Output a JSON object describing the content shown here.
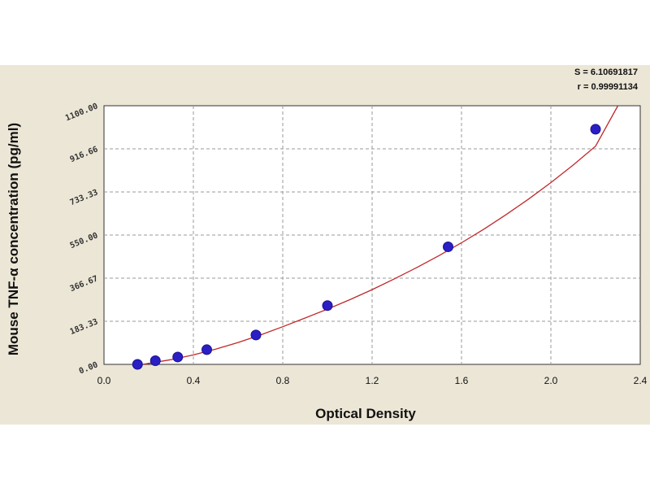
{
  "chart_data": {
    "type": "scatter",
    "xlabel": "Optical Density",
    "ylabel": "Mouse TNF-α concentration (pg/ml)",
    "xlim": [
      0.0,
      2.4
    ],
    "ylim": [
      0.0,
      1100.0
    ],
    "x_ticks": [
      "0.0",
      "0.4",
      "0.8",
      "1.2",
      "1.6",
      "2.0",
      "2.4"
    ],
    "y_ticks": [
      "0.00",
      "183.33",
      "366.67",
      "550.00",
      "733.33",
      "916.66",
      "1100.00"
    ],
    "grid": true,
    "stats": [
      "S = 6.10691817",
      "r = 0.99991134"
    ],
    "points": {
      "x": [
        0.15,
        0.23,
        0.33,
        0.46,
        0.68,
        1.0,
        1.54,
        2.2
      ],
      "y": [
        0,
        15.6,
        31.25,
        62.5,
        125,
        250,
        500,
        1000
      ]
    },
    "fit_curve": {
      "x": [
        0.12,
        0.2,
        0.3,
        0.4,
        0.5,
        0.6,
        0.7,
        0.8,
        0.9,
        1.0,
        1.1,
        1.2,
        1.3,
        1.4,
        1.5,
        1.6,
        1.7,
        1.8,
        1.9,
        2.0,
        2.1,
        2.2,
        2.3
      ],
      "y": [
        -8,
        4,
        20,
        40,
        65,
        93,
        125,
        160,
        197,
        235,
        275,
        318,
        364,
        412,
        463,
        517,
        575,
        637,
        703,
        773,
        848,
        928,
        1100
      ]
    },
    "colors": {
      "point": "#2a1ec4",
      "curve": "#c0282a",
      "grid": "#9a9a9a",
      "plot_bg": "#ffffff",
      "panel_bg": "#ece6d6"
    }
  }
}
